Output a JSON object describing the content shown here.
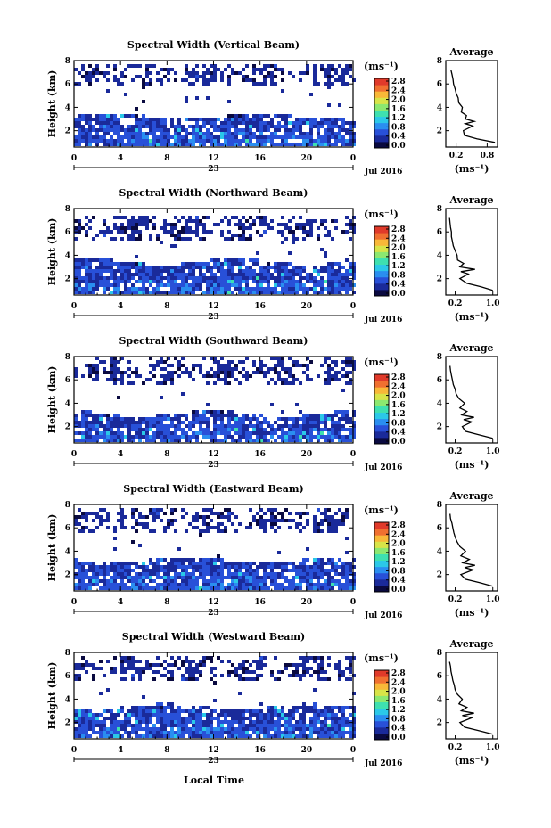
{
  "figure": {
    "x_axis_label": "Local Time",
    "date_label": "Jul 2016",
    "day_label": "23",
    "colorbar_unit": "(ms⁻¹)",
    "colorbar_ticks": [
      "0.0",
      "0.4",
      "0.8",
      "1.2",
      "1.6",
      "2.0",
      "2.4",
      "2.8"
    ],
    "colormap": [
      "#0a0a40",
      "#1a2a9a",
      "#2850d8",
      "#2a8ef0",
      "#2bc8e8",
      "#3ee0b0",
      "#8ce870",
      "#d8e448",
      "#f8b838",
      "#f07030",
      "#e03a2a"
    ]
  },
  "chart_data": [
    {
      "type": "heatmap",
      "title": "Spectral Width (Vertical Beam)",
      "ylabel": "Height (km)",
      "x_ticks": [
        "0",
        "4",
        "8",
        "12",
        "16",
        "20",
        "0"
      ],
      "xlim": [
        0,
        24
      ],
      "y_ticks": [
        "2",
        "4",
        "6",
        "8"
      ],
      "ylim": [
        0.6,
        8
      ],
      "value_range": [
        0.0,
        3.0
      ],
      "upper_layer_km": [
        6.0,
        7.8
      ],
      "lower_layer_km": [
        0.7,
        3.4
      ],
      "profile": {
        "title": "Average",
        "xlabel": "(ms⁻¹)",
        "x_ticks": [
          "0.2",
          "0.8"
        ],
        "xlim": [
          0.0,
          1.0
        ],
        "heights_km": [
          1.0,
          1.3,
          1.6,
          2.0,
          2.4,
          2.6,
          2.8,
          3.0,
          3.3,
          3.6,
          4.0,
          4.4,
          4.8,
          5.2,
          5.6,
          6.0,
          6.4,
          6.8,
          7.2
        ],
        "values": [
          0.95,
          0.6,
          0.36,
          0.34,
          0.52,
          0.38,
          0.55,
          0.38,
          0.4,
          0.3,
          0.32,
          0.25,
          0.24,
          0.2,
          0.18,
          0.15,
          0.14,
          0.12,
          0.1
        ]
      }
    },
    {
      "type": "heatmap",
      "title": "Spectral Width (Northward Beam)",
      "ylabel": "Height (km)",
      "x_ticks": [
        "0",
        "4",
        "8",
        "12",
        "16",
        "20",
        "0"
      ],
      "xlim": [
        0,
        24
      ],
      "y_ticks": [
        "2",
        "4",
        "6",
        "8"
      ],
      "ylim": [
        0.6,
        8
      ],
      "value_range": [
        0.0,
        3.0
      ],
      "upper_layer_km": [
        5.4,
        7.6
      ],
      "lower_layer_km": [
        0.7,
        3.6
      ],
      "profile": {
        "title": "Average",
        "xlabel": "(ms⁻¹)",
        "x_ticks": [
          "0.2",
          "1.0"
        ],
        "xlim": [
          0.0,
          1.1
        ],
        "heights_km": [
          1.0,
          1.3,
          1.6,
          2.0,
          2.4,
          2.6,
          2.8,
          3.0,
          3.3,
          3.6,
          4.0,
          4.4,
          4.8,
          5.2,
          5.6,
          6.0,
          6.4,
          6.8,
          7.2
        ],
        "values": [
          1.0,
          0.75,
          0.45,
          0.3,
          0.48,
          0.32,
          0.62,
          0.3,
          0.38,
          0.25,
          0.24,
          0.2,
          0.16,
          0.14,
          0.12,
          0.12,
          0.1,
          0.09,
          0.08
        ]
      }
    },
    {
      "type": "heatmap",
      "title": "Spectral Width (Southward Beam)",
      "ylabel": "Height (km)",
      "x_ticks": [
        "0",
        "4",
        "8",
        "12",
        "16",
        "20",
        "0"
      ],
      "xlim": [
        0,
        24
      ],
      "y_ticks": [
        "2",
        "4",
        "6",
        "8"
      ],
      "ylim": [
        0.6,
        8
      ],
      "value_range": [
        0.0,
        3.0
      ],
      "upper_layer_km": [
        5.8,
        8.0
      ],
      "lower_layer_km": [
        0.7,
        3.3
      ],
      "profile": {
        "title": "Average",
        "xlabel": "(ms⁻¹)",
        "x_ticks": [
          "0.2",
          "1.0"
        ],
        "xlim": [
          0.0,
          1.1
        ],
        "heights_km": [
          1.0,
          1.3,
          1.6,
          2.0,
          2.4,
          2.6,
          2.8,
          3.0,
          3.3,
          3.6,
          4.0,
          4.4,
          4.8,
          5.2,
          5.6,
          6.0,
          6.4,
          6.8,
          7.2
        ],
        "values": [
          1.0,
          0.7,
          0.42,
          0.35,
          0.55,
          0.38,
          0.6,
          0.34,
          0.45,
          0.3,
          0.4,
          0.28,
          0.22,
          0.2,
          0.16,
          0.14,
          0.12,
          0.1,
          0.09
        ]
      }
    },
    {
      "type": "heatmap",
      "title": "Spectral Width (Eastward Beam)",
      "ylabel": "Height (km)",
      "x_ticks": [
        "0",
        "4",
        "8",
        "12",
        "16",
        "20",
        "0"
      ],
      "xlim": [
        0,
        24
      ],
      "y_ticks": [
        "2",
        "4",
        "6",
        "8"
      ],
      "ylim": [
        0.6,
        8
      ],
      "value_range": [
        0.0,
        3.0
      ],
      "upper_layer_km": [
        5.6,
        7.9
      ],
      "lower_layer_km": [
        0.7,
        3.4
      ],
      "profile": {
        "title": "Average",
        "xlabel": "(ms⁻¹)",
        "x_ticks": [
          "0.2",
          "1.0"
        ],
        "xlim": [
          0.0,
          1.1
        ],
        "heights_km": [
          1.0,
          1.3,
          1.6,
          2.0,
          2.4,
          2.6,
          2.8,
          3.0,
          3.3,
          3.6,
          4.0,
          4.4,
          4.8,
          5.2,
          5.6,
          6.0,
          6.4,
          6.8,
          7.2
        ],
        "values": [
          1.0,
          0.72,
          0.42,
          0.32,
          0.58,
          0.4,
          0.62,
          0.36,
          0.5,
          0.32,
          0.42,
          0.3,
          0.24,
          0.2,
          0.17,
          0.15,
          0.13,
          0.1,
          0.09
        ]
      }
    },
    {
      "type": "heatmap",
      "title": "Spectral Width (Westward Beam)",
      "ylabel": "Height (km)",
      "x_ticks": [
        "0",
        "4",
        "8",
        "12",
        "16",
        "20",
        "0"
      ],
      "xlim": [
        0,
        24
      ],
      "y_ticks": [
        "2",
        "4",
        "6",
        "8"
      ],
      "ylim": [
        0.6,
        8
      ],
      "value_range": [
        0.0,
        3.0
      ],
      "upper_layer_km": [
        5.6,
        7.9
      ],
      "lower_layer_km": [
        0.7,
        3.5
      ],
      "profile": {
        "title": "Average",
        "xlabel": "(ms⁻¹)",
        "x_ticks": [
          "0.2",
          "1.0"
        ],
        "xlim": [
          0.0,
          1.1
        ],
        "heights_km": [
          1.0,
          1.3,
          1.6,
          2.0,
          2.4,
          2.6,
          2.8,
          3.0,
          3.3,
          3.6,
          4.0,
          4.4,
          4.8,
          5.2,
          5.6,
          6.0,
          6.4,
          6.8,
          7.2
        ],
        "values": [
          1.0,
          0.7,
          0.4,
          0.3,
          0.55,
          0.35,
          0.6,
          0.33,
          0.45,
          0.28,
          0.35,
          0.25,
          0.2,
          0.18,
          0.15,
          0.13,
          0.11,
          0.1,
          0.08
        ]
      }
    }
  ]
}
